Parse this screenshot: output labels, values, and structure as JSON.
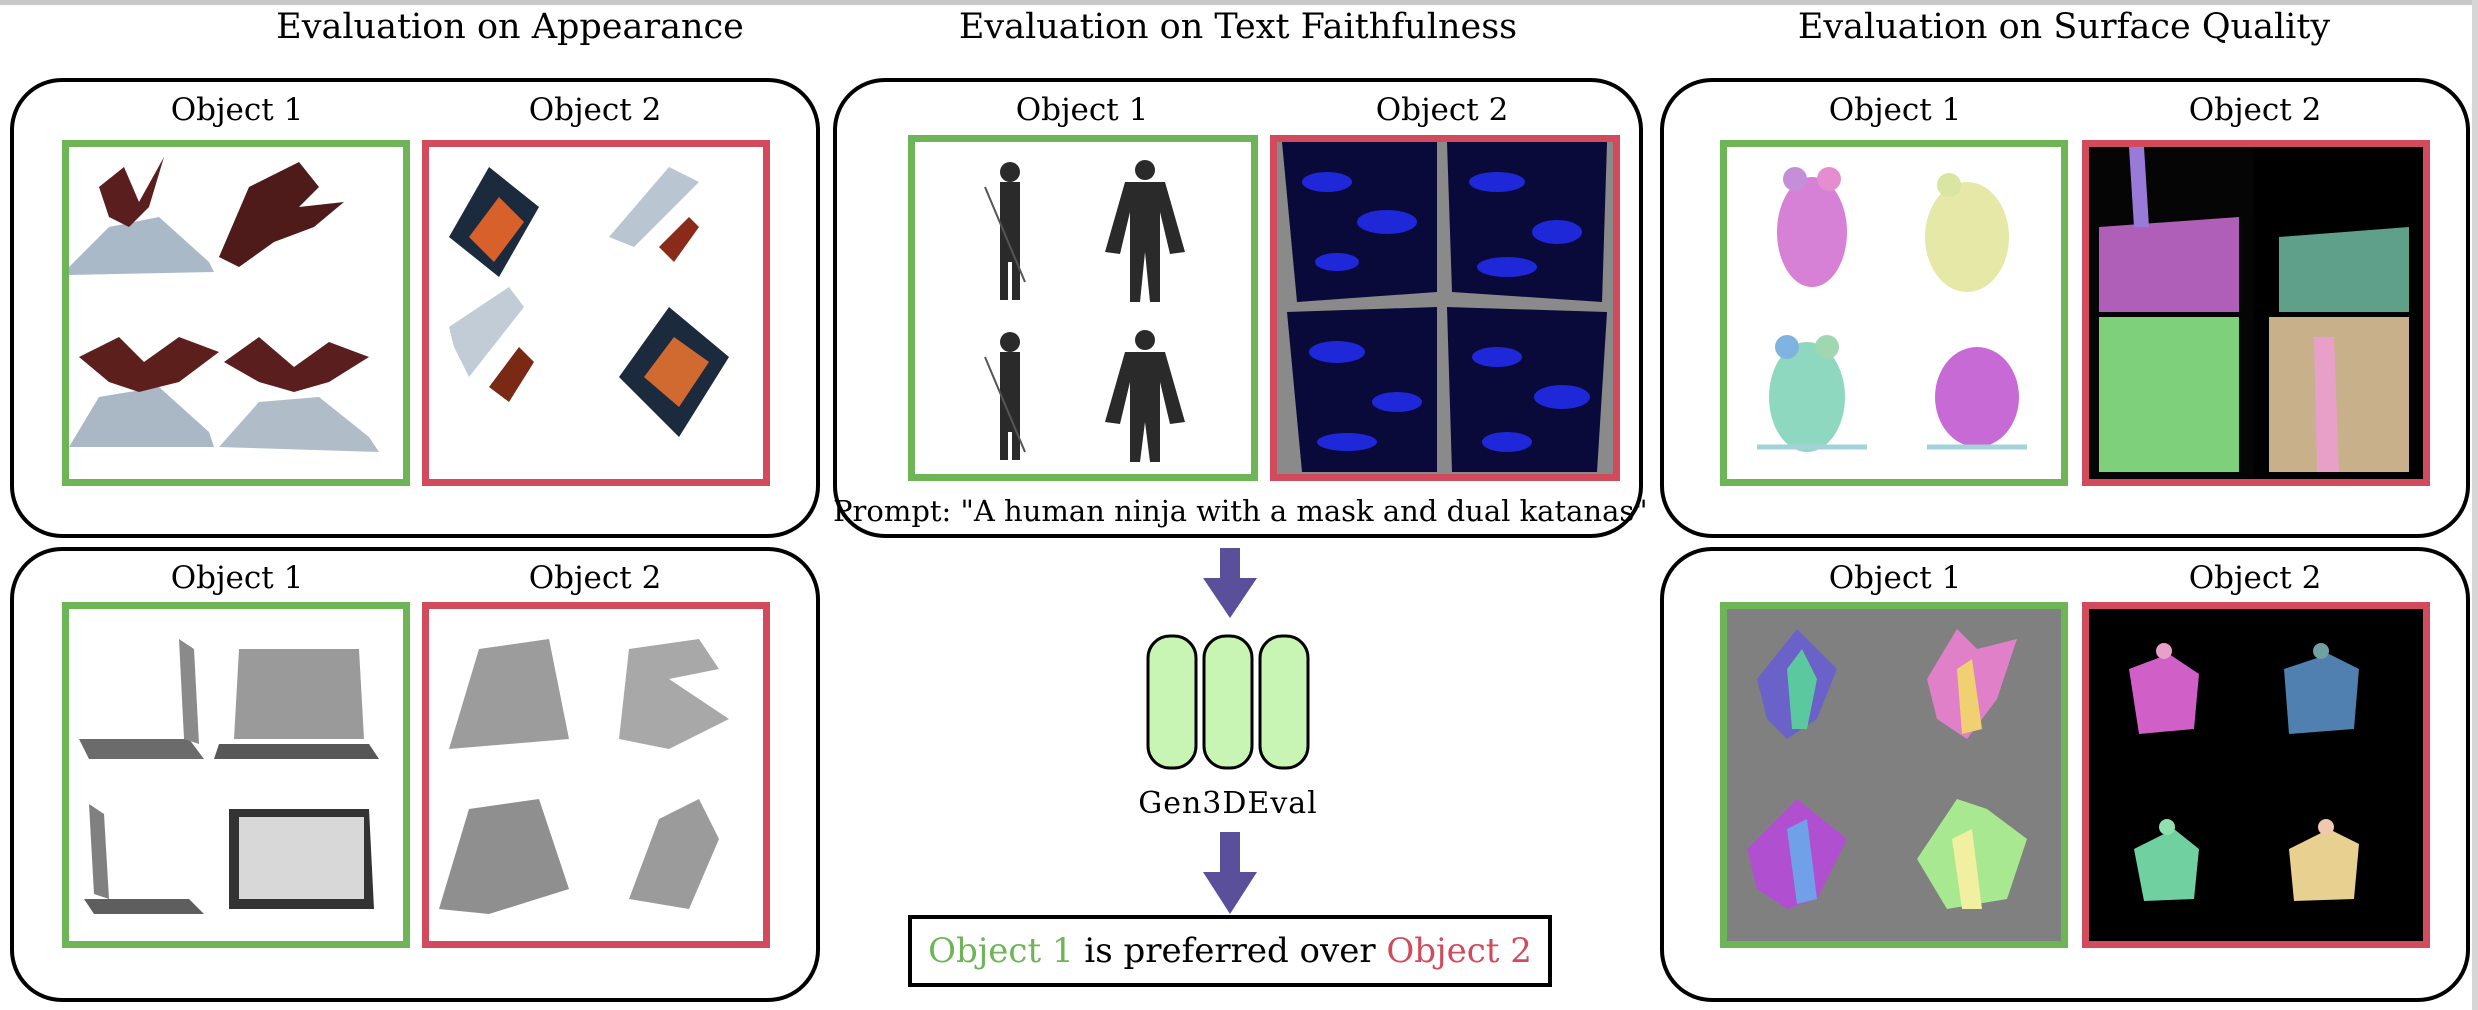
{
  "columns": {
    "appearance": "Evaluation on Appearance",
    "text": "Evaluation on Text Faithfulness",
    "surface": "Evaluation on Surface Quality"
  },
  "object_1_label": "Object 1",
  "object_2_label": "Object 2",
  "prompt_text": "Prompt: \"A human ninja with a mask and dual katanas\"",
  "evaluator_name": "Gen3DEval",
  "result": {
    "object_1": "Object 1",
    "middle": " is preferred over ",
    "object_2": "Object 2"
  },
  "colors": {
    "preferred_green": "#6db556",
    "rejected_red": "#d24b5c",
    "arrow_purple": "#5a4f9a",
    "evaluator_fill": "#c8f5b4"
  },
  "images": {
    "app_top_obj1": "dragon-on-rock renders",
    "app_top_obj2": "distorted dragon texture renders",
    "app_bot_obj1": "laptop renders",
    "app_bot_obj2": "distorted grey shape renders",
    "text_obj1": "ninja silhouette renders",
    "text_obj2": "blue noisy texture renders",
    "surf_top_obj1": "panda normal-map renders",
    "surf_top_obj2": "noisy normal-map renders",
    "surf_bot_obj1": "winged warrior normal-map renders",
    "surf_bot_obj2": "caped figure normal-map renders"
  }
}
